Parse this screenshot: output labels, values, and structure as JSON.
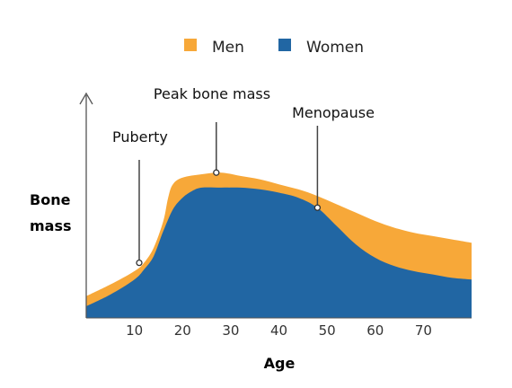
{
  "chart_data": {
    "type": "area",
    "title": "",
    "xlabel": "Age",
    "ylabel": [
      "Bone",
      "mass"
    ],
    "xlim": [
      0,
      80
    ],
    "ylim": [
      0,
      100
    ],
    "x_ticks": [
      10,
      20,
      30,
      40,
      50,
      60,
      70
    ],
    "legend_position": "top-center",
    "grid": false,
    "stacked": false,
    "series": [
      {
        "name": "Men",
        "color": "#F7A839",
        "x": [
          0,
          5,
          10,
          12,
          14,
          16,
          17,
          18,
          20,
          24,
          28,
          32,
          36,
          40,
          44,
          48,
          52,
          56,
          60,
          64,
          68,
          72,
          76,
          80
        ],
        "values": [
          13,
          20,
          28,
          33,
          42,
          58,
          72,
          80,
          84,
          86,
          87,
          85,
          83,
          80,
          77,
          73,
          68,
          63,
          58,
          54,
          51,
          49,
          47,
          45
        ]
      },
      {
        "name": "Women",
        "color": "#2166A3",
        "x": [
          0,
          5,
          10,
          12,
          14,
          16,
          18,
          20,
          22,
          24,
          28,
          32,
          36,
          40,
          44,
          48,
          52,
          56,
          60,
          64,
          68,
          72,
          76,
          80
        ],
        "values": [
          7,
          14,
          23,
          29,
          37,
          52,
          65,
          72,
          76,
          78,
          78,
          78,
          77,
          75,
          72,
          66,
          55,
          44,
          36,
          31,
          28,
          26,
          24,
          23
        ]
      }
    ],
    "annotations": [
      {
        "text": "Puberty",
        "x": 11,
        "y": 33
      },
      {
        "text": "Peak bone mass",
        "x": 27,
        "y": 87
      },
      {
        "text": "Menopause",
        "x": 48,
        "y": 66
      }
    ]
  }
}
